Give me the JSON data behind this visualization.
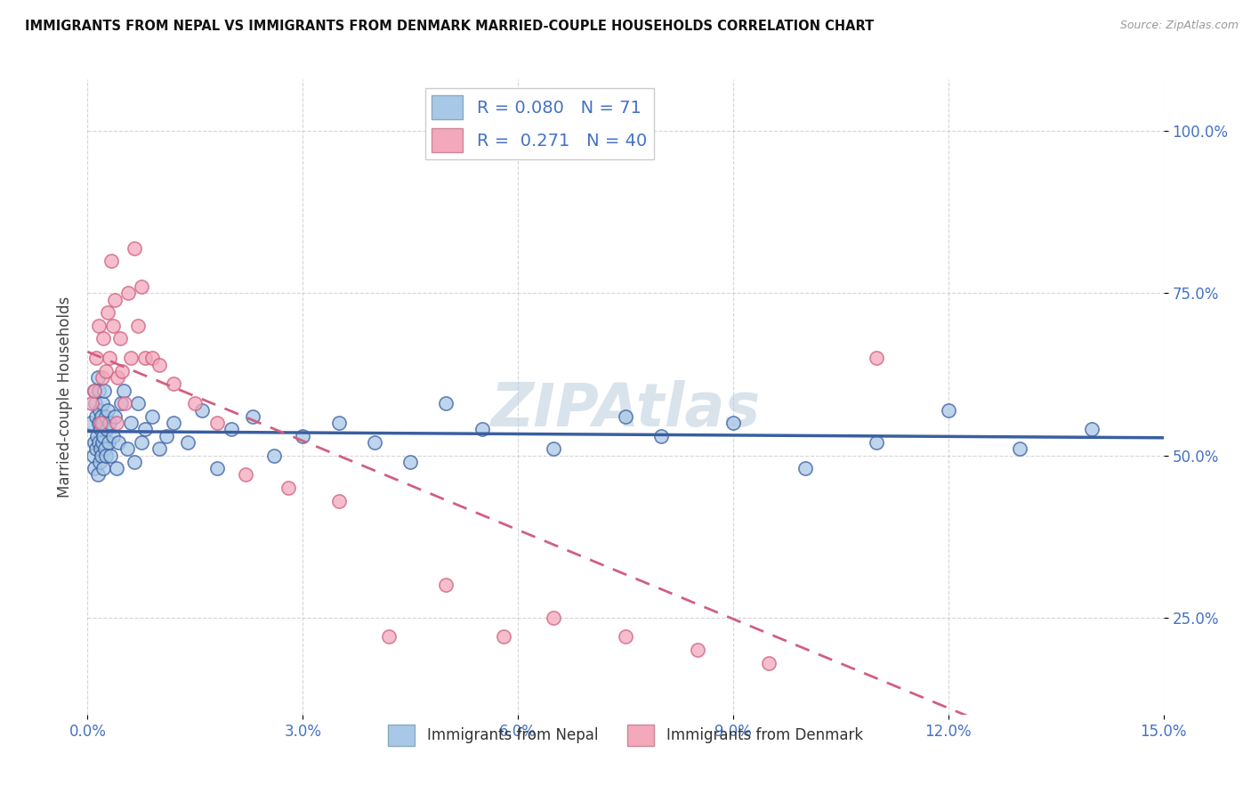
{
  "title": "IMMIGRANTS FROM NEPAL VS IMMIGRANTS FROM DENMARK MARRIED-COUPLE HOUSEHOLDS CORRELATION CHART",
  "source": "Source: ZipAtlas.com",
  "ylabel": "Married-couple Households",
  "xlim": [
    0.0,
    15.0
  ],
  "ylim": [
    10.0,
    108.0
  ],
  "yticks": [
    25.0,
    50.0,
    75.0,
    100.0
  ],
  "ytick_labels": [
    "25.0%",
    "50.0%",
    "75.0%",
    "100.0%"
  ],
  "xticks": [
    0,
    3,
    6,
    9,
    12,
    15
  ],
  "xtick_labels": [
    "0.0%",
    "3.0%",
    "6.0%",
    "9.0%",
    "12.0%",
    "15.0%"
  ],
  "nepal_color": "#A8C8E8",
  "denmark_color": "#F4A8BC",
  "nepal_R": 0.08,
  "nepal_N": 71,
  "denmark_R": 0.271,
  "denmark_N": 40,
  "nepal_line_color": "#3A5FA0",
  "denmark_line_color": "#D06080",
  "watermark": "ZIPAtlas",
  "nepal_x": [
    0.05,
    0.08,
    0.09,
    0.1,
    0.1,
    0.11,
    0.12,
    0.12,
    0.13,
    0.14,
    0.14,
    0.15,
    0.15,
    0.16,
    0.17,
    0.17,
    0.18,
    0.18,
    0.19,
    0.19,
    0.2,
    0.21,
    0.21,
    0.22,
    0.22,
    0.23,
    0.24,
    0.25,
    0.26,
    0.27,
    0.28,
    0.29,
    0.3,
    0.32,
    0.35,
    0.38,
    0.4,
    0.43,
    0.46,
    0.5,
    0.55,
    0.6,
    0.65,
    0.7,
    0.75,
    0.8,
    0.9,
    1.0,
    1.1,
    1.2,
    1.4,
    1.6,
    1.8,
    2.0,
    2.3,
    2.6,
    3.0,
    3.5,
    4.0,
    4.5,
    5.0,
    5.5,
    6.5,
    7.5,
    8.0,
    9.0,
    10.0,
    11.0,
    12.0,
    13.0,
    14.0
  ],
  "nepal_y": [
    55,
    50,
    60,
    48,
    52,
    58,
    51,
    56,
    53,
    62,
    47,
    55,
    60,
    52,
    49,
    57,
    51,
    54,
    56,
    50,
    52,
    55,
    58,
    48,
    53,
    60,
    51,
    56,
    50,
    54,
    57,
    52,
    55,
    50,
    53,
    56,
    48,
    52,
    58,
    60,
    51,
    55,
    49,
    58,
    52,
    54,
    56,
    51,
    53,
    55,
    52,
    57,
    48,
    54,
    56,
    50,
    53,
    55,
    52,
    49,
    58,
    54,
    51,
    56,
    53,
    55,
    48,
    52,
    57,
    51,
    54
  ],
  "denmark_x": [
    0.06,
    0.09,
    0.12,
    0.15,
    0.18,
    0.2,
    0.22,
    0.25,
    0.28,
    0.3,
    0.33,
    0.36,
    0.38,
    0.4,
    0.42,
    0.45,
    0.48,
    0.52,
    0.56,
    0.6,
    0.65,
    0.7,
    0.75,
    0.8,
    0.9,
    1.0,
    1.2,
    1.5,
    1.8,
    2.2,
    2.8,
    3.5,
    4.2,
    5.0,
    5.8,
    6.5,
    7.5,
    8.5,
    9.5,
    11.0
  ],
  "denmark_y": [
    58,
    60,
    65,
    70,
    55,
    62,
    68,
    63,
    72,
    65,
    80,
    70,
    74,
    55,
    62,
    68,
    63,
    58,
    75,
    65,
    82,
    70,
    76,
    65,
    65,
    64,
    61,
    58,
    55,
    47,
    45,
    43,
    22,
    30,
    22,
    25,
    22,
    20,
    18,
    65
  ]
}
